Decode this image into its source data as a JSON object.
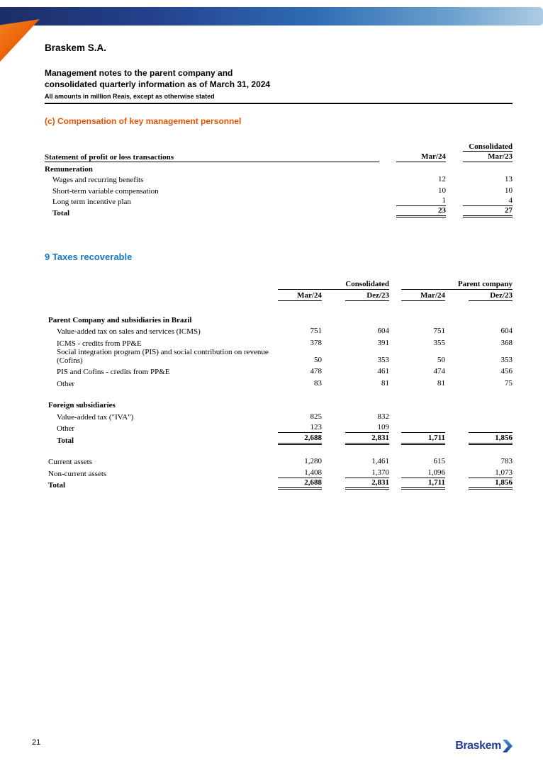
{
  "colors": {
    "accent-orange": "#E65300",
    "heading-blue": "#1878BE",
    "logo-blue": "#21409A",
    "bar-navy": "#1C2E66",
    "bar-blue": "#2F6CB3",
    "bar-light": "#AECCE4"
  },
  "header": {
    "company": "Braskem S.A.",
    "title_line1": "Management notes to the parent company and",
    "title_line2": "consolidated quarterly information as of March 31, 2024",
    "note": "All amounts in million Reais, except as otherwise stated"
  },
  "compensation": {
    "heading": "(c) Compensation of key management personnel",
    "group_header": "Consolidated",
    "stub_header": "Statement of profit or loss transactions",
    "columns": [
      "Mar/24",
      "Mar/23"
    ],
    "section": "Remuneration",
    "rows": [
      {
        "label": "Wages and recurring benefits",
        "v1": "12",
        "v2": "13"
      },
      {
        "label": "Short-term variable compensation",
        "v1": "10",
        "v2": "10"
      },
      {
        "label": "Long term incentive plan",
        "v1": "1",
        "v2": "4"
      }
    ],
    "total": {
      "label": "Total",
      "v1": "23",
      "v2": "27"
    }
  },
  "taxes": {
    "heading": "9 Taxes recoverable",
    "group_headers": [
      "Consolidated",
      "Parent company"
    ],
    "columns": [
      "Mar/24",
      "Dez/23",
      "Mar/24",
      "Dez/23"
    ],
    "brazil": {
      "section": "Parent Company and subsidiaries in Brazil",
      "rows": [
        {
          "label": "Value-added tax on sales and services (ICMS)",
          "v1": "751",
          "v2": "604",
          "v3": "751",
          "v4": "604"
        },
        {
          "label": "ICMS - credits from PP&E",
          "v1": "378",
          "v2": "391",
          "v3": "355",
          "v4": "368"
        },
        {
          "label": "Social integration program (PIS) and social contribution on revenue (Cofins)",
          "v1": "50",
          "v2": "353",
          "v3": "50",
          "v4": "353"
        },
        {
          "label": "PIS and Cofins - credits from PP&E",
          "v1": "478",
          "v2": "461",
          "v3": "474",
          "v4": "456"
        },
        {
          "label": "Other",
          "v1": "83",
          "v2": "81",
          "v3": "81",
          "v4": "75"
        }
      ]
    },
    "foreign": {
      "section": "Foreign subsidiaries",
      "rows": [
        {
          "label": "Value-added tax (\"IVA\")",
          "v1": "825",
          "v2": "832",
          "v3": "",
          "v4": ""
        },
        {
          "label": "Other",
          "v1": "123",
          "v2": "109",
          "v3": "",
          "v4": ""
        }
      ],
      "total": {
        "label": "Total",
        "v1": "2,688",
        "v2": "2,831",
        "v3": "1,711",
        "v4": "1,856"
      }
    },
    "assets": {
      "rows": [
        {
          "label": "Current assets",
          "v1": "1,280",
          "v2": "1,461",
          "v3": "615",
          "v4": "783"
        },
        {
          "label": "Non-current assets",
          "v1": "1,408",
          "v2": "1,370",
          "v3": "1,096",
          "v4": "1,073"
        }
      ],
      "total": {
        "label": "Total",
        "v1": "2,688",
        "v2": "2,831",
        "v3": "1,711",
        "v4": "1,856"
      }
    }
  },
  "footer": {
    "page_number": "21",
    "logo_text": "Braskem"
  }
}
